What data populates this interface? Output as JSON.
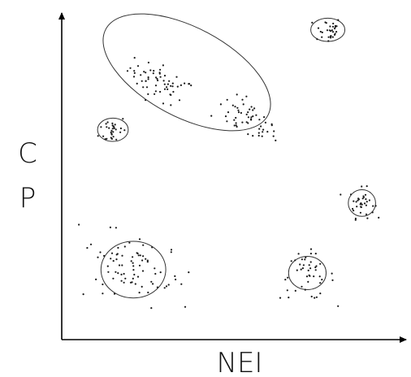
{
  "chart_data": {
    "type": "scatter",
    "xlabel": "NEI",
    "ylabel": "CP",
    "ylabel_lines": [
      "C",
      "P"
    ],
    "grid": false,
    "colors": {
      "points": "#1a1a1a",
      "axes": "#000000",
      "clusters": "#333333"
    },
    "clusters": [
      {
        "cx": 0.29,
        "cy": 0.77,
        "count": 60,
        "spread": [
          0.05,
          0.025
        ],
        "angle": -28,
        "region": [
          0.29,
          0.77,
          0.27,
          0.12,
          -28
        ]
      },
      {
        "cx": 0.54,
        "cy": 0.66,
        "count": 55,
        "spread": [
          0.05,
          0.025
        ],
        "angle": -28,
        "region": [
          0.52,
          0.7,
          0.27,
          0.12,
          -28
        ]
      },
      {
        "cx": 0.78,
        "cy": 0.93,
        "count": 30,
        "spread": [
          0.02,
          0.02
        ],
        "angle": 0,
        "region": [
          0.78,
          0.93,
          0.1,
          0.07,
          0
        ]
      },
      {
        "cx": 0.15,
        "cy": 0.63,
        "count": 30,
        "spread": [
          0.02,
          0.022
        ],
        "angle": 0,
        "region": [
          0.15,
          0.63,
          0.09,
          0.07,
          0
        ]
      },
      {
        "cx": 0.88,
        "cy": 0.41,
        "count": 35,
        "spread": [
          0.018,
          0.022
        ],
        "angle": 0,
        "region": [
          0.88,
          0.41,
          0.08,
          0.08,
          0
        ]
      },
      {
        "cx": 0.21,
        "cy": 0.22,
        "count": 80,
        "spread": [
          0.07,
          0.045
        ],
        "angle": -35,
        "region": [
          0.21,
          0.21,
          0.19,
          0.17,
          0
        ]
      },
      {
        "cx": 0.72,
        "cy": 0.19,
        "count": 45,
        "spread": [
          0.04,
          0.035
        ],
        "angle": 0,
        "region": [
          0.72,
          0.2,
          0.11,
          0.1,
          0
        ]
      }
    ]
  }
}
